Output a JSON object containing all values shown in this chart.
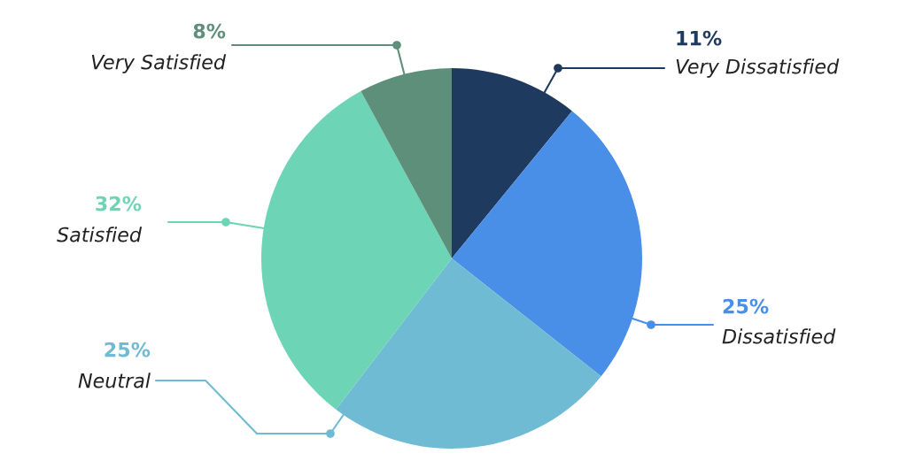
{
  "chart_data": {
    "type": "pie",
    "categories": [
      "Very Dissatisfied",
      "Dissatisfied",
      "Neutral",
      "Satisfied",
      "Very Satisfied"
    ],
    "values": [
      11,
      25,
      25,
      32,
      8
    ],
    "value_labels": [
      "11%",
      "25%",
      "25%",
      "32%",
      "8%"
    ],
    "colors": [
      "#1f3a5f",
      "#4a8fe7",
      "#6fbbd3",
      "#6dd5b5",
      "#5e8f7a"
    ]
  }
}
